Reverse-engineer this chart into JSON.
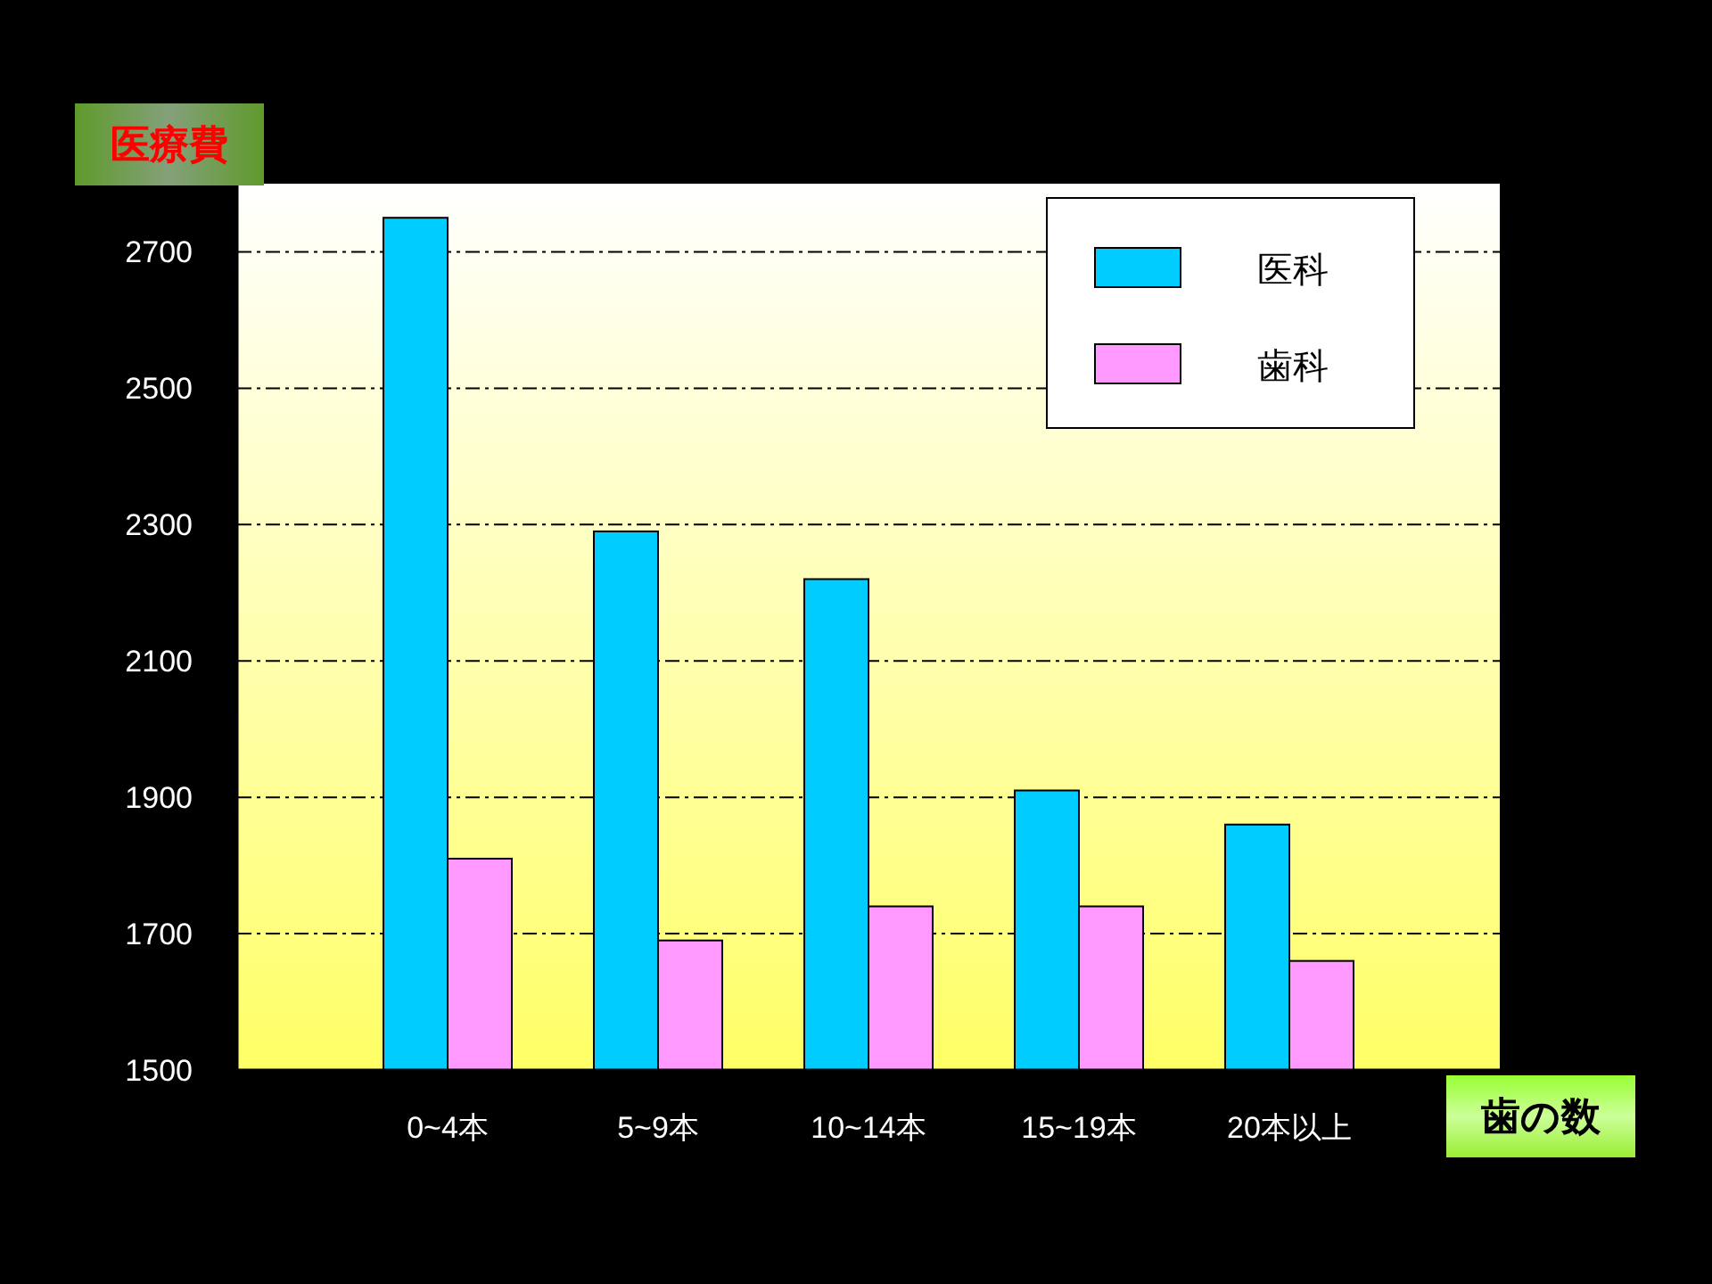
{
  "chart_data": {
    "type": "bar",
    "xlabel": "歯の数",
    "ylabel": "医療費",
    "categories": [
      "0~4本",
      "5~9本",
      "10~14本",
      "15~19本",
      "20本以上"
    ],
    "series": [
      {
        "name": "医科",
        "color": "#00ccff",
        "values": [
          2750,
          2290,
          2220,
          1910,
          1860
        ]
      },
      {
        "name": "歯科",
        "color": "#ff99ff",
        "values": [
          1810,
          1690,
          1740,
          1740,
          1660
        ]
      }
    ],
    "ylim": [
      1500,
      2800
    ],
    "yticks": [
      1500,
      1700,
      1900,
      2100,
      2300,
      2500,
      2700
    ],
    "grid": "y",
    "legend": "top right"
  }
}
